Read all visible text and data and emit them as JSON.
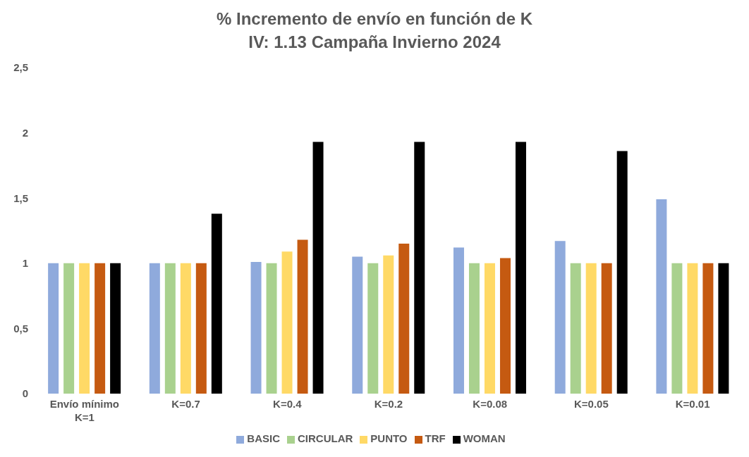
{
  "chart_data": {
    "type": "bar",
    "title": "% Incremento de envío en función de K",
    "subtitle": "IV: 1.13 Campaña Invierno 2024",
    "categories": [
      "Envío mínimo\nK=1",
      "K=0.7",
      "K=0.4",
      "K=0.2",
      "K=0.08",
      "K=0.05",
      "K=0.01"
    ],
    "series": [
      {
        "name": "BASIC",
        "color": "#8faadc",
        "values": [
          1,
          1,
          1.01,
          1.05,
          1.12,
          1.17,
          1.49
        ]
      },
      {
        "name": "CIRCULAR",
        "color": "#a9d18e",
        "values": [
          1,
          1,
          1,
          1,
          1,
          1,
          1
        ]
      },
      {
        "name": "PUNTO",
        "color": "#ffd966",
        "values": [
          1,
          1,
          1.09,
          1.06,
          1,
          1,
          1
        ]
      },
      {
        "name": "TRF",
        "color": "#c55a11",
        "values": [
          1,
          1,
          1.18,
          1.15,
          1.04,
          1,
          1
        ]
      },
      {
        "name": "WOMAN",
        "color": "#000000",
        "values": [
          1,
          1.38,
          1.93,
          1.93,
          1.93,
          1.86,
          1
        ]
      }
    ],
    "ylim": [
      0,
      2.5
    ],
    "yticks": [
      {
        "value": 0,
        "label": "0"
      },
      {
        "value": 0.5,
        "label": "0,5"
      },
      {
        "value": 1,
        "label": "1"
      },
      {
        "value": 1.5,
        "label": "1,5"
      },
      {
        "value": 2,
        "label": "2"
      },
      {
        "value": 2.5,
        "label": "2,5"
      }
    ],
    "grid": false,
    "legend": "bottom"
  }
}
